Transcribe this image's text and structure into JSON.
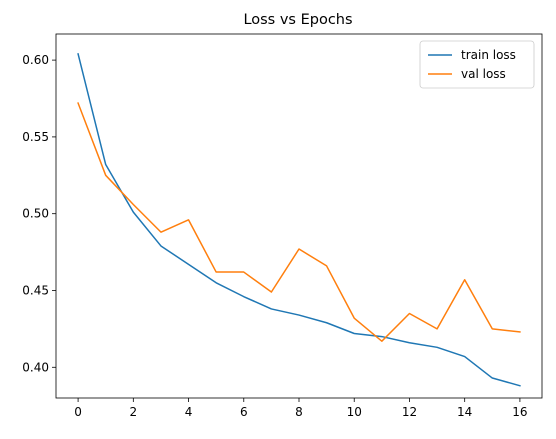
{
  "chart_data": {
    "type": "line",
    "title": "Loss vs Epochs",
    "xlabel": "",
    "ylabel": "",
    "x": [
      0,
      1,
      2,
      3,
      4,
      5,
      6,
      7,
      8,
      9,
      10,
      11,
      12,
      13,
      14,
      15,
      16
    ],
    "xlim": [
      -0.8,
      16.8
    ],
    "ylim": [
      0.38,
      0.617
    ],
    "xticks": [
      0,
      2,
      4,
      6,
      8,
      10,
      12,
      14,
      16
    ],
    "yticks": [
      0.4,
      0.45,
      0.5,
      0.55,
      0.6
    ],
    "xtick_labels": [
      "0",
      "2",
      "4",
      "6",
      "8",
      "10",
      "12",
      "14",
      "16"
    ],
    "ytick_labels": [
      "0.40",
      "0.45",
      "0.50",
      "0.55",
      "0.60"
    ],
    "grid": false,
    "legend_position": "top-right",
    "series": [
      {
        "name": "train loss",
        "color": "#1f77b4",
        "values": [
          0.604,
          0.532,
          0.501,
          0.479,
          0.467,
          0.455,
          0.446,
          0.438,
          0.434,
          0.429,
          0.422,
          0.42,
          0.416,
          0.413,
          0.407,
          0.393,
          0.388
        ]
      },
      {
        "name": "val loss",
        "color": "#ff7f0e",
        "values": [
          0.572,
          0.525,
          0.506,
          0.488,
          0.496,
          0.462,
          0.462,
          0.449,
          0.477,
          0.466,
          0.432,
          0.417,
          0.435,
          0.425,
          0.457,
          0.425,
          0.423
        ]
      }
    ]
  }
}
